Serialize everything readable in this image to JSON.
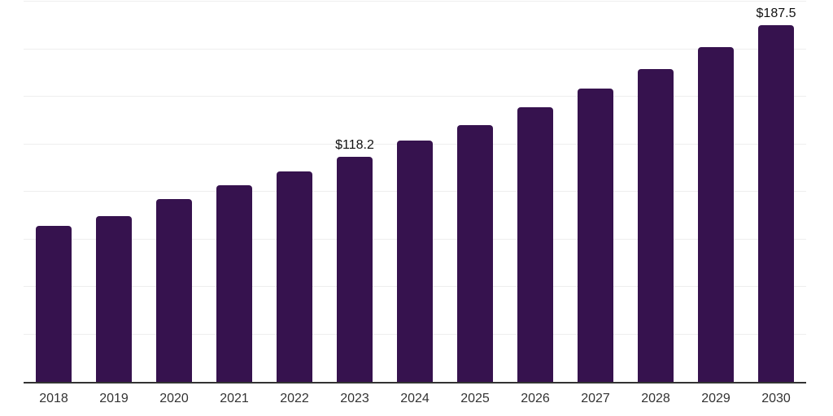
{
  "chart_data": {
    "type": "bar",
    "title": "",
    "categories": [
      "2018",
      "2019",
      "2020",
      "2021",
      "2022",
      "2023",
      "2024",
      "2025",
      "2026",
      "2027",
      "2028",
      "2029",
      "2030"
    ],
    "values": [
      82.0,
      87.3,
      96.2,
      103.6,
      110.7,
      118.2,
      126.9,
      135.2,
      144.6,
      154.4,
      164.6,
      176.0,
      187.5
    ],
    "data_labels": {
      "2023": "$118.2",
      "2030": "$187.5"
    },
    "xlabel": "",
    "ylabel": "",
    "ylim": [
      0,
      200
    ],
    "y_gridline_step": 25,
    "grid": "horizontal",
    "legend_position": "none",
    "y_tick_labels_visible": false,
    "colors": {
      "bar": "#36124e",
      "gridline": "#eeeeee",
      "axis_line": "#333333",
      "x_tick_label": "#333333",
      "data_label": "#111111",
      "background": "#ffffff"
    }
  }
}
